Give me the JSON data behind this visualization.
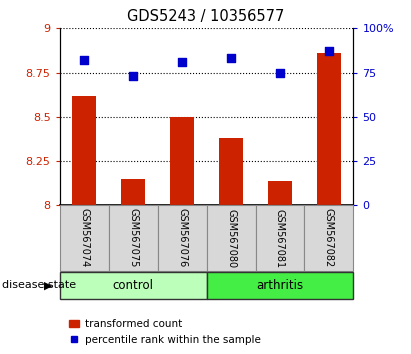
{
  "title": "GDS5243 / 10356577",
  "samples": [
    "GSM567074",
    "GSM567075",
    "GSM567076",
    "GSM567080",
    "GSM567081",
    "GSM567082"
  ],
  "transformed_counts": [
    8.62,
    8.15,
    8.5,
    8.38,
    8.14,
    8.86
  ],
  "percentile_ranks": [
    82,
    73,
    81,
    83,
    75,
    87
  ],
  "ylim_left": [
    8.0,
    9.0
  ],
  "ylim_right": [
    0,
    100
  ],
  "yticks_left": [
    8.0,
    8.25,
    8.5,
    8.75,
    9.0
  ],
  "yticks_right": [
    0,
    25,
    50,
    75,
    100
  ],
  "ytick_labels_left": [
    "8",
    "8.25",
    "8.5",
    "8.75",
    "9"
  ],
  "ytick_labels_right": [
    "0",
    "25",
    "50",
    "75",
    "100%"
  ],
  "bar_color": "#cc2200",
  "dot_color": "#0000cc",
  "groups": [
    {
      "label": "control",
      "color": "#bbffbb",
      "n": 3
    },
    {
      "label": "arthritis",
      "color": "#44ee44",
      "n": 3
    }
  ],
  "group_label": "disease state",
  "legend_bar_label": "transformed count",
  "legend_dot_label": "percentile rank within the sample",
  "grid_color": "black",
  "sample_bg": "#d8d8d8",
  "plot_bg": "#ffffff",
  "label_color_left": "#cc2200",
  "label_color_right": "#0000cc",
  "bar_width": 0.5,
  "dot_size": 40
}
